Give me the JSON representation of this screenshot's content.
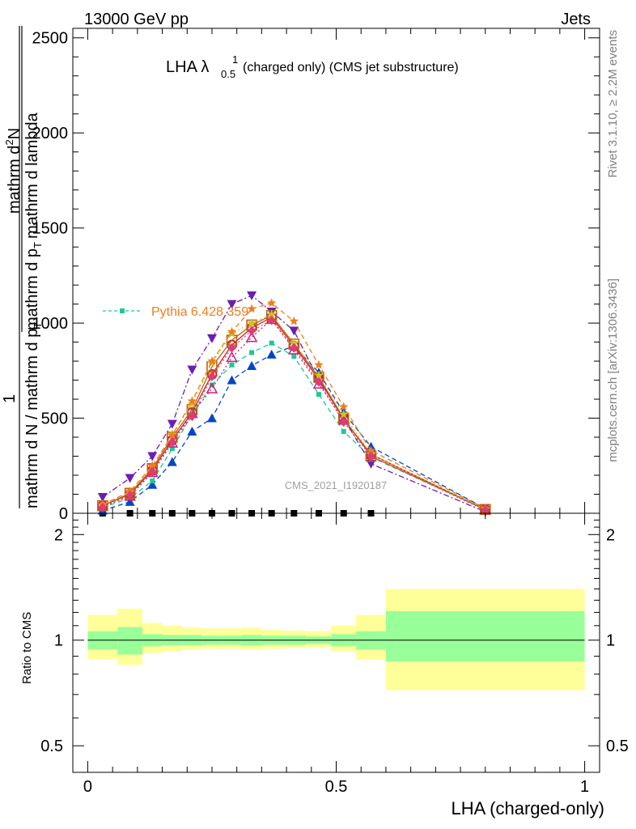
{
  "header": {
    "energy_label": "13000 GeV pp",
    "process_label": "Jets"
  },
  "chart_data": [
    {
      "type": "line",
      "title": "LHA λ",
      "title_sup": "1",
      "title_sub": "0.5",
      "title_rest": "(charged only) (CMS jet substructure)",
      "ylabel_fraction_top": "1",
      "ylabel_fraction_bottom": "mathrm d N / mathrm d p",
      "ylabel_fraction_bottom_sub": "T",
      "ylabel_numerator": "mathrm d",
      "ylabel_numerator_sup": "2",
      "ylabel_numerator_rest": "N",
      "ylabel_denominator": "mathrm d p",
      "ylabel_denominator_sub": "T",
      "ylabel_denominator_rest": "mathrm d lambda",
      "xlim": [
        -0.03,
        1.03
      ],
      "ylim": [
        0,
        2550
      ],
      "yticks": [
        0,
        500,
        1000,
        1500,
        2000,
        2500
      ],
      "grid": false,
      "legend_entry": "Pythia 6.428 359",
      "legend_placement": "upper-left",
      "watermark": "CMS_2021_I1920187",
      "x": [
        0.03,
        0.085,
        0.13,
        0.17,
        0.21,
        0.25,
        0.29,
        0.33,
        0.37,
        0.415,
        0.465,
        0.515,
        0.57,
        0.8
      ],
      "series": [
        {
          "color": "#000000",
          "marker": "square",
          "style": "data",
          "values": [
            0,
            0,
            0,
            0,
            0,
            0,
            0,
            0,
            0,
            0,
            0,
            0,
            0,
            null
          ]
        },
        {
          "color": "#0047c6",
          "marker": "triangle-up",
          "style": "dashed",
          "values": [
            15,
            60,
            150,
            270,
            430,
            500,
            700,
            775,
            835,
            880,
            740,
            530,
            350,
            25
          ]
        },
        {
          "color": "#6a1fb3",
          "marker": "triangle-down",
          "style": "dashdot",
          "values": [
            85,
            185,
            300,
            470,
            755,
            920,
            1100,
            1145,
            1060,
            960,
            700,
            500,
            260,
            8
          ]
        },
        {
          "color": "#1ec896",
          "marker": "small-square",
          "style": "dashed",
          "values": [
            30,
            80,
            170,
            340,
            520,
            675,
            780,
            845,
            895,
            825,
            625,
            430,
            295,
            20
          ]
        },
        {
          "color": "#c81e7a",
          "marker": "triangle-open",
          "style": "dotted",
          "values": [
            35,
            90,
            215,
            370,
            525,
            655,
            820,
            925,
            1020,
            860,
            680,
            490,
            310,
            18
          ]
        },
        {
          "color": "#dc1e1e",
          "marker": "circle-open",
          "style": "solid",
          "values": [
            40,
            100,
            225,
            385,
            530,
            730,
            885,
            975,
            1030,
            880,
            705,
            495,
            310,
            20
          ]
        },
        {
          "color": "#b4641e",
          "marker": "square-open",
          "style": "solid",
          "values": [
            40,
            105,
            235,
            400,
            545,
            770,
            910,
            990,
            1040,
            890,
            715,
            500,
            300,
            20
          ]
        },
        {
          "color": "#c8c81e",
          "marker": "star",
          "style": "dotted",
          "values": [
            45,
            110,
            245,
            415,
            575,
            790,
            945,
            1000,
            1045,
            895,
            725,
            520,
            310,
            22
          ]
        },
        {
          "color": "#f07d1e",
          "marker": "star",
          "style": "dashed",
          "values": [
            45,
            115,
            250,
            410,
            590,
            800,
            955,
            1075,
            1105,
            1010,
            780,
            560,
            330,
            25
          ]
        },
        {
          "color": "#dc3c78",
          "marker": "diamond",
          "style": "dotted",
          "values": [
            30,
            95,
            220,
            375,
            510,
            720,
            870,
            960,
            1015,
            870,
            690,
            480,
            300,
            15
          ]
        }
      ]
    },
    {
      "type": "area",
      "ylabel": "Ratio to CMS",
      "xlabel": "LHA (charged-only)",
      "xlim": [
        -0.03,
        1.03
      ],
      "ylim": [
        0.42,
        2.3
      ],
      "log_scale_y": true,
      "yticks": [
        0.5,
        1,
        2
      ],
      "yticklabels": [
        "0.5",
        "1",
        "2"
      ],
      "xticks": [
        0,
        0.5,
        1
      ],
      "xticklabels": [
        "0",
        "0.5",
        "1"
      ],
      "bins": [
        {
          "x": [
            0.0,
            0.06
          ],
          "inner": [
            0.94,
            1.06
          ],
          "outer": [
            0.88,
            1.18
          ]
        },
        {
          "x": [
            0.06,
            0.11
          ],
          "inner": [
            0.91,
            1.09
          ],
          "outer": [
            0.85,
            1.23
          ]
        },
        {
          "x": [
            0.11,
            0.15
          ],
          "inner": [
            0.96,
            1.04
          ],
          "outer": [
            0.92,
            1.12
          ]
        },
        {
          "x": [
            0.15,
            0.19
          ],
          "inner": [
            0.965,
            1.035
          ],
          "outer": [
            0.93,
            1.1
          ]
        },
        {
          "x": [
            0.19,
            0.23
          ],
          "inner": [
            0.965,
            1.035
          ],
          "outer": [
            0.94,
            1.085
          ]
        },
        {
          "x": [
            0.23,
            0.27
          ],
          "inner": [
            0.97,
            1.03
          ],
          "outer": [
            0.945,
            1.08
          ]
        },
        {
          "x": [
            0.27,
            0.31
          ],
          "inner": [
            0.97,
            1.03
          ],
          "outer": [
            0.945,
            1.08
          ]
        },
        {
          "x": [
            0.31,
            0.35
          ],
          "inner": [
            0.965,
            1.035
          ],
          "outer": [
            0.94,
            1.085
          ]
        },
        {
          "x": [
            0.35,
            0.39
          ],
          "inner": [
            0.97,
            1.03
          ],
          "outer": [
            0.945,
            1.07
          ]
        },
        {
          "x": [
            0.39,
            0.44
          ],
          "inner": [
            0.97,
            1.03
          ],
          "outer": [
            0.95,
            1.065
          ]
        },
        {
          "x": [
            0.44,
            0.49
          ],
          "inner": [
            0.975,
            1.025
          ],
          "outer": [
            0.955,
            1.06
          ]
        },
        {
          "x": [
            0.49,
            0.54
          ],
          "inner": [
            0.96,
            1.04
          ],
          "outer": [
            0.93,
            1.1
          ]
        },
        {
          "x": [
            0.54,
            0.6
          ],
          "inner": [
            0.94,
            1.06
          ],
          "outer": [
            0.88,
            1.18
          ]
        },
        {
          "x": [
            0.6,
            1.0
          ],
          "inner": [
            0.87,
            1.21
          ],
          "outer": [
            0.72,
            1.4
          ]
        }
      ],
      "reference_line": 1,
      "band_colors": {
        "inner": "#99ff99",
        "outer": "#ffff99"
      }
    }
  ],
  "side_labels": {
    "rivet": "Rivet 3.1.10, ≥ 2.2M events",
    "mcplots": "mcplots.cern.ch [arXiv:1306.3436]"
  }
}
